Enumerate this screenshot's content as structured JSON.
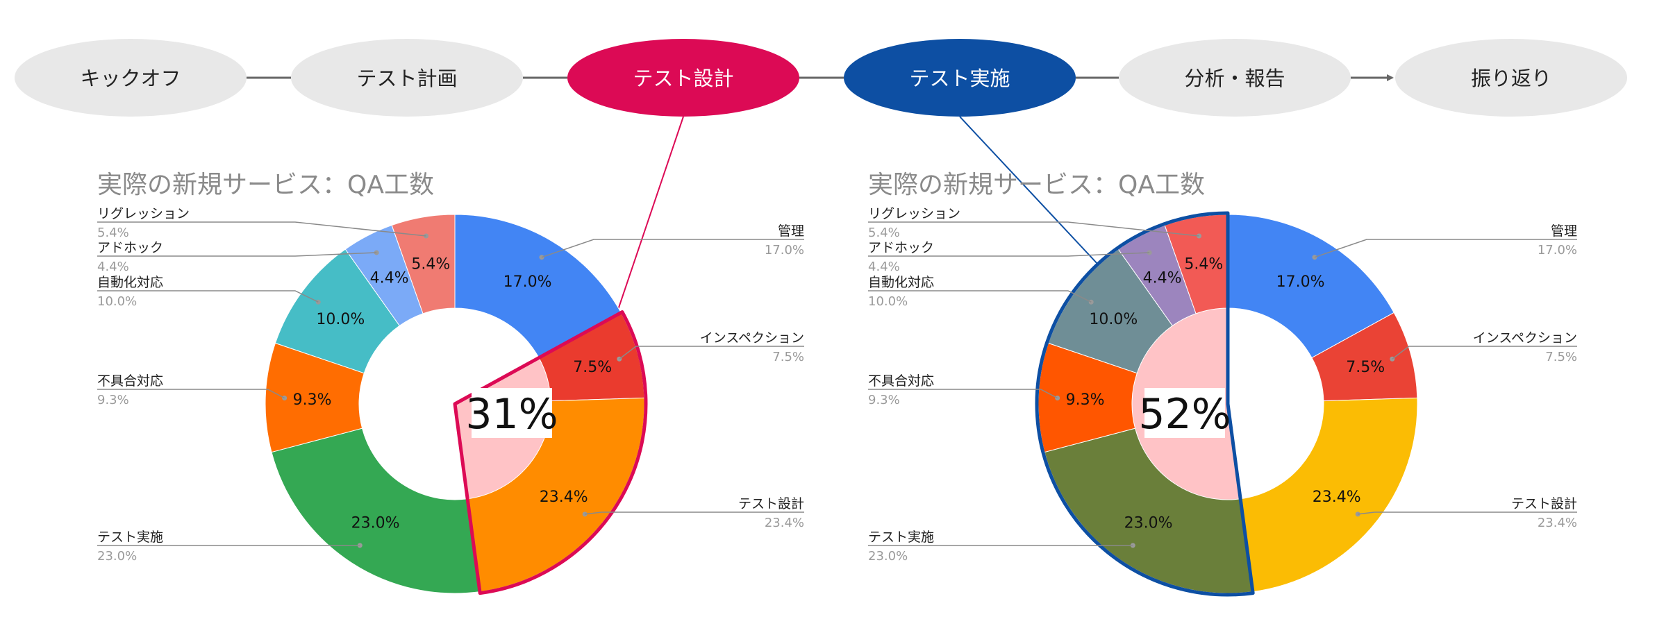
{
  "process_steps": [
    {
      "label": "キックオフ",
      "fill": "#e8e8e8",
      "text_color": "#222222"
    },
    {
      "label": "テスト計画",
      "fill": "#e8e8e8",
      "text_color": "#222222"
    },
    {
      "label": "テスト設計",
      "fill": "#dc0a55",
      "text_color": "#ffffff"
    },
    {
      "label": "テスト実施",
      "fill": "#0d4fa3",
      "text_color": "#ffffff"
    },
    {
      "label": "分析・報告",
      "fill": "#e8e8e8",
      "text_color": "#222222"
    },
    {
      "label": "振り返り",
      "fill": "#e8e8e8",
      "text_color": "#222222"
    }
  ],
  "chart_data": [
    {
      "type": "pie",
      "donut": true,
      "title": "実際の新規サービス：QA工数",
      "categories": [
        "管理",
        "インスペクション",
        "テスト設計",
        "テスト実施",
        "不具合対応",
        "自動化対応",
        "アドホック",
        "リグレッション"
      ],
      "values": [
        17.0,
        7.5,
        23.4,
        23.0,
        9.3,
        10.0,
        4.4,
        5.4
      ],
      "slice_labels": [
        "17.0%",
        "7.5%",
        "23.4%",
        "23.0%",
        "9.3%",
        "10.0%",
        "4.4%",
        "5.4%"
      ],
      "colors": [
        "#4285f4",
        "#ea3b2e",
        "#ff8c00",
        "#34a853",
        "#ff6d01",
        "#46bdc6",
        "#7baaf7",
        "#f07b72"
      ],
      "highlight": {
        "share": "31%",
        "slices": [
          "インスペクション",
          "テスト設計"
        ],
        "outline_color": "#dc0a55",
        "inner_fill": "#ffc3c6"
      },
      "legend_placement": "callouts"
    },
    {
      "type": "pie",
      "donut": true,
      "title": "実際の新規サービス：QA工数",
      "categories": [
        "管理",
        "インスペクション",
        "テスト設計",
        "テスト実施",
        "不具合対応",
        "自動化対応",
        "アドホック",
        "リグレッション"
      ],
      "values": [
        17.0,
        7.5,
        23.4,
        23.0,
        9.3,
        10.0,
        4.4,
        5.4
      ],
      "slice_labels": [
        "17.0%",
        "7.5%",
        "23.4%",
        "23.0%",
        "9.3%",
        "10.0%",
        "4.4%",
        "5.4%"
      ],
      "colors": [
        "#4285f4",
        "#ea4335",
        "#fbbc04",
        "#6a7f3a",
        "#ff5600",
        "#6f8e96",
        "#9c85be",
        "#f25a55"
      ],
      "highlight": {
        "share": "52%",
        "slices": [
          "テスト実施",
          "不具合対応",
          "自動化対応",
          "アドホック",
          "リグレッション"
        ],
        "outline_color": "#0d4fa3",
        "inner_fill": "#ffc3c6"
      },
      "legend_placement": "callouts"
    }
  ]
}
